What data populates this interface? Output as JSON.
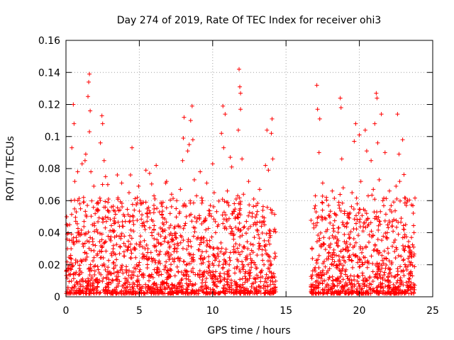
{
  "chart_data": {
    "type": "scatter",
    "title": "Day 274 of 2019, Rate Of TEC Index for receiver ohi3",
    "xlabel": "GPS time / hours",
    "ylabel": "ROTI / TECUs",
    "xlim": [
      0,
      25
    ],
    "ylim": [
      0,
      0.16
    ],
    "xticks": [
      0,
      5,
      10,
      15,
      20,
      25
    ],
    "yticks": [
      0,
      0.02,
      0.04,
      0.06,
      0.08,
      0.1,
      0.12,
      0.14,
      0.16
    ],
    "xtick_labels": [
      "0",
      "5",
      "10",
      "15",
      "20",
      "25"
    ],
    "ytick_labels": [
      "0",
      "0.02",
      "0.04",
      "0.06",
      "0.08",
      "0.1",
      "0.12",
      "0.14",
      "0.16"
    ],
    "grid": true,
    "marker": "+",
    "color": "#ff0000",
    "data_gap_hours": [
      14.3,
      16.7
    ],
    "series": [
      {
        "name": "ROTI",
        "points": [
          [
            0.1,
            0.03
          ],
          [
            0.2,
            0.018
          ],
          [
            0.25,
            0.045
          ],
          [
            0.35,
            0.06
          ],
          [
            0.4,
            0.093
          ],
          [
            0.5,
            0.12
          ],
          [
            0.5,
            0.014
          ],
          [
            0.55,
            0.108
          ],
          [
            0.6,
            0.072
          ],
          [
            0.7,
            0.053
          ],
          [
            0.75,
            0.009
          ],
          [
            0.8,
            0.078
          ],
          [
            0.85,
            0.04
          ],
          [
            0.95,
            0.058
          ],
          [
            1.05,
            0.022
          ],
          [
            1.1,
            0.083
          ],
          [
            1.15,
            0.033
          ],
          [
            1.2,
            0.062
          ],
          [
            1.3,
            0.085
          ],
          [
            1.35,
            0.089
          ],
          [
            1.4,
            0.05
          ],
          [
            1.5,
            0.125
          ],
          [
            1.55,
            0.134
          ],
          [
            1.6,
            0.139
          ],
          [
            1.6,
            0.103
          ],
          [
            1.65,
            0.116
          ],
          [
            1.7,
            0.078
          ],
          [
            1.8,
            0.045
          ],
          [
            1.9,
            0.069
          ],
          [
            2.0,
            0.032
          ],
          [
            2.1,
            0.054
          ],
          [
            2.2,
            0.017
          ],
          [
            2.35,
            0.096
          ],
          [
            2.45,
            0.113
          ],
          [
            2.5,
            0.108
          ],
          [
            2.6,
            0.085
          ],
          [
            2.7,
            0.075
          ],
          [
            2.75,
            0.047
          ],
          [
            2.85,
            0.07
          ],
          [
            2.9,
            0.061
          ],
          [
            3.0,
            0.036
          ],
          [
            3.1,
            0.056
          ],
          [
            3.2,
            0.028
          ],
          [
            3.3,
            0.049
          ],
          [
            3.45,
            0.038
          ],
          [
            3.5,
            0.076
          ],
          [
            3.7,
            0.031
          ],
          [
            3.8,
            0.071
          ],
          [
            3.9,
            0.044
          ],
          [
            4.05,
            0.047
          ],
          [
            4.2,
            0.029
          ],
          [
            4.3,
            0.065
          ],
          [
            4.4,
            0.076
          ],
          [
            4.5,
            0.093
          ],
          [
            4.6,
            0.041
          ],
          [
            4.8,
            0.033
          ],
          [
            4.95,
            0.069
          ],
          [
            5.1,
            0.058
          ],
          [
            5.3,
            0.025
          ],
          [
            5.45,
            0.079
          ],
          [
            5.55,
            0.052
          ],
          [
            5.7,
            0.077
          ],
          [
            5.85,
            0.04
          ],
          [
            6.0,
            0.063
          ],
          [
            6.15,
            0.082
          ],
          [
            6.3,
            0.034
          ],
          [
            6.5,
            0.058
          ],
          [
            6.6,
            0.046
          ],
          [
            6.8,
            0.071
          ],
          [
            6.9,
            0.027
          ],
          [
            7.1,
            0.052
          ],
          [
            7.2,
            0.064
          ],
          [
            7.4,
            0.03
          ],
          [
            7.55,
            0.06
          ],
          [
            7.65,
            0.044
          ],
          [
            7.8,
            0.067
          ],
          [
            7.95,
            0.085
          ],
          [
            8.0,
            0.099
          ],
          [
            8.05,
            0.112
          ],
          [
            8.2,
            0.05
          ],
          [
            8.3,
            0.091
          ],
          [
            8.4,
            0.095
          ],
          [
            8.5,
            0.11
          ],
          [
            8.6,
            0.119
          ],
          [
            8.65,
            0.098
          ],
          [
            8.75,
            0.073
          ],
          [
            8.9,
            0.063
          ],
          [
            9.0,
            0.037
          ],
          [
            9.15,
            0.078
          ],
          [
            9.3,
            0.06
          ],
          [
            9.5,
            0.048
          ],
          [
            9.6,
            0.071
          ],
          [
            9.8,
            0.052
          ],
          [
            10.0,
            0.083
          ],
          [
            10.1,
            0.065
          ],
          [
            10.2,
            0.04
          ],
          [
            10.4,
            0.03
          ],
          [
            10.6,
            0.102
          ],
          [
            10.7,
            0.119
          ],
          [
            10.75,
            0.093
          ],
          [
            10.85,
            0.114
          ],
          [
            11.0,
            0.066
          ],
          [
            11.1,
            0.057
          ],
          [
            11.2,
            0.087
          ],
          [
            11.3,
            0.081
          ],
          [
            11.45,
            0.039
          ],
          [
            11.6,
            0.061
          ],
          [
            11.75,
            0.104
          ],
          [
            11.8,
            0.142
          ],
          [
            11.85,
            0.131
          ],
          [
            11.9,
            0.127
          ],
          [
            11.9,
            0.117
          ],
          [
            12.0,
            0.086
          ],
          [
            12.1,
            0.064
          ],
          [
            12.3,
            0.047
          ],
          [
            12.45,
            0.072
          ],
          [
            12.6,
            0.033
          ],
          [
            12.8,
            0.061
          ],
          [
            12.95,
            0.045
          ],
          [
            13.2,
            0.067
          ],
          [
            13.4,
            0.05
          ],
          [
            13.6,
            0.082
          ],
          [
            13.7,
            0.104
          ],
          [
            13.8,
            0.079
          ],
          [
            13.9,
            0.037
          ],
          [
            14.0,
            0.102
          ],
          [
            14.05,
            0.111
          ],
          [
            14.1,
            0.086
          ],
          [
            14.2,
            0.024
          ],
          [
            16.9,
            0.043
          ],
          [
            17.0,
            0.063
          ],
          [
            17.1,
            0.132
          ],
          [
            17.15,
            0.117
          ],
          [
            17.25,
            0.09
          ],
          [
            17.3,
            0.111
          ],
          [
            17.4,
            0.05
          ],
          [
            17.5,
            0.071
          ],
          [
            17.6,
            0.033
          ],
          [
            17.75,
            0.062
          ],
          [
            17.9,
            0.057
          ],
          [
            18.0,
            0.046
          ],
          [
            18.15,
            0.066
          ],
          [
            18.3,
            0.052
          ],
          [
            18.45,
            0.034
          ],
          [
            18.6,
            0.059
          ],
          [
            18.7,
            0.124
          ],
          [
            18.75,
            0.118
          ],
          [
            18.8,
            0.086
          ],
          [
            18.9,
            0.068
          ],
          [
            19.0,
            0.044
          ],
          [
            19.2,
            0.052
          ],
          [
            19.35,
            0.037
          ],
          [
            19.5,
            0.065
          ],
          [
            19.65,
            0.097
          ],
          [
            19.75,
            0.108
          ],
          [
            19.85,
            0.058
          ],
          [
            20.0,
            0.101
          ],
          [
            20.1,
            0.072
          ],
          [
            20.3,
            0.046
          ],
          [
            20.4,
            0.104
          ],
          [
            20.5,
            0.091
          ],
          [
            20.6,
            0.063
          ],
          [
            20.8,
            0.085
          ],
          [
            20.95,
            0.067
          ],
          [
            21.05,
            0.108
          ],
          [
            21.15,
            0.127
          ],
          [
            21.2,
            0.124
          ],
          [
            21.25,
            0.096
          ],
          [
            21.35,
            0.073
          ],
          [
            21.5,
            0.114
          ],
          [
            21.6,
            0.06
          ],
          [
            21.75,
            0.09
          ],
          [
            21.9,
            0.04
          ],
          [
            22.05,
            0.066
          ],
          [
            22.2,
            0.053
          ],
          [
            22.35,
            0.034
          ],
          [
            22.5,
            0.069
          ],
          [
            22.6,
            0.114
          ],
          [
            22.7,
            0.089
          ],
          [
            22.75,
            0.072
          ],
          [
            22.85,
            0.049
          ],
          [
            22.95,
            0.098
          ],
          [
            23.05,
            0.042
          ],
          [
            23.2,
            0.057
          ],
          [
            23.4,
            0.028
          ],
          [
            23.55,
            0.037
          ],
          [
            23.7,
            0.031
          ]
        ]
      }
    ]
  }
}
